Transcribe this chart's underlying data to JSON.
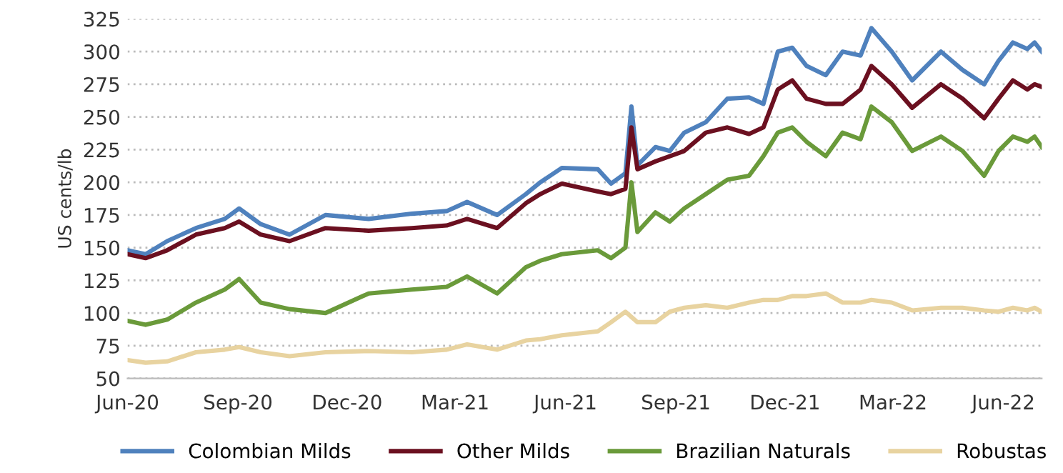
{
  "chart_data": {
    "type": "line",
    "ylabel": "US cents/lb",
    "x": [
      "2020-06-01",
      "2020-06-16",
      "2020-07-04",
      "2020-07-28",
      "2020-08-21",
      "2020-09-02",
      "2020-09-20",
      "2020-10-14",
      "2020-11-13",
      "2020-12-19",
      "2021-01-24",
      "2021-02-22",
      "2021-03-11",
      "2021-04-05",
      "2021-04-29",
      "2021-05-11",
      "2021-05-29",
      "2021-06-28",
      "2021-07-09",
      "2021-07-21",
      "2021-07-26",
      "2021-07-31",
      "2021-08-15",
      "2021-08-27",
      "2021-09-08",
      "2021-09-26",
      "2021-10-14",
      "2021-11-01",
      "2021-11-13",
      "2021-11-25",
      "2021-12-07",
      "2021-12-19",
      "2022-01-04",
      "2022-01-18",
      "2022-02-02",
      "2022-02-11",
      "2022-02-28",
      "2022-03-17",
      "2022-04-10",
      "2022-04-28",
      "2022-05-16",
      "2022-05-28",
      "2022-06-09",
      "2022-06-21",
      "2022-06-27",
      "2022-07-03"
    ],
    "series": [
      {
        "name": "Colombian Milds",
        "color": "#4f81bd",
        "values": [
          148,
          145,
          155,
          165,
          172,
          180,
          168,
          160,
          175,
          172,
          176,
          178,
          185,
          175,
          191,
          200,
          211,
          210,
          199,
          207,
          258,
          213,
          227,
          224,
          238,
          246,
          264,
          265,
          260,
          300,
          303,
          289,
          282,
          300,
          297,
          318,
          300,
          278,
          300,
          286,
          275,
          293,
          307,
          302,
          307,
          300
        ]
      },
      {
        "name": "Other Milds",
        "color": "#6b1020",
        "values": [
          145,
          142,
          148,
          160,
          165,
          170,
          160,
          155,
          165,
          163,
          165,
          167,
          172,
          165,
          184,
          191,
          199,
          193,
          191,
          195,
          242,
          210,
          216,
          220,
          224,
          238,
          242,
          237,
          242,
          271,
          278,
          264,
          260,
          260,
          271,
          289,
          275,
          257,
          275,
          264,
          249,
          264,
          278,
          271,
          275,
          273
        ]
      },
      {
        "name": "Brazilian Naturals",
        "color": "#6a9a3a",
        "values": [
          94,
          91,
          95,
          108,
          118,
          126,
          108,
          103,
          100,
          115,
          118,
          120,
          128,
          115,
          135,
          140,
          145,
          148,
          142,
          150,
          200,
          162,
          177,
          170,
          180,
          191,
          202,
          205,
          220,
          238,
          242,
          231,
          220,
          238,
          233,
          258,
          246,
          224,
          235,
          224,
          205,
          224,
          235,
          231,
          235,
          227
        ]
      },
      {
        "name": "Robustas",
        "color": "#e8d3a0",
        "values": [
          64,
          62,
          63,
          70,
          72,
          74,
          70,
          67,
          70,
          71,
          70,
          72,
          76,
          72,
          79,
          80,
          83,
          86,
          93,
          101,
          97,
          93,
          93,
          101,
          104,
          106,
          104,
          108,
          110,
          110,
          113,
          113,
          115,
          108,
          108,
          110,
          108,
          102,
          104,
          104,
          102,
          101,
          104,
          102,
          104,
          101
        ]
      }
    ],
    "xlim": [
      "2020-06-01",
      "2022-07-03"
    ],
    "xticks": [
      {
        "value": "2020-06-01",
        "label": "Jun-20"
      },
      {
        "value": "2020-09-01",
        "label": "Sep-20"
      },
      {
        "value": "2020-12-01",
        "label": "Dec-20"
      },
      {
        "value": "2021-03-01",
        "label": "Mar-21"
      },
      {
        "value": "2021-06-01",
        "label": "Jun-21"
      },
      {
        "value": "2021-09-01",
        "label": "Sep-21"
      },
      {
        "value": "2021-12-01",
        "label": "Dec-21"
      },
      {
        "value": "2022-03-01",
        "label": "Mar-22"
      },
      {
        "value": "2022-06-01",
        "label": "Jun-22"
      }
    ],
    "ylim": [
      50,
      325
    ],
    "yticks": [
      50,
      75,
      100,
      125,
      150,
      175,
      200,
      225,
      250,
      275,
      300,
      325
    ],
    "grid": "y",
    "legend": "bottom",
    "marker": "none",
    "line_style": "solid"
  }
}
